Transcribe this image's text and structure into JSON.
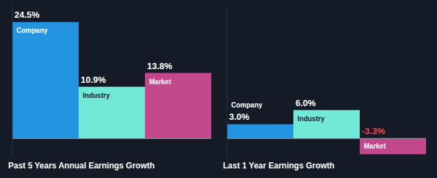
{
  "chart_data": [
    {
      "type": "bar",
      "title": "Past 5 Years Annual Earnings Growth",
      "categories": [
        "Company",
        "Industry",
        "Market"
      ],
      "values": [
        24.5,
        10.9,
        13.8
      ],
      "value_labels": [
        "24.5%",
        "10.9%",
        "13.8%"
      ],
      "colors": [
        "#2394df",
        "#72e8d6",
        "#c2488b"
      ],
      "ylim": [
        -4,
        28
      ],
      "yticks": [
        0
      ],
      "data_labels": true,
      "tick_labels": false
    },
    {
      "type": "bar",
      "title": "Last 1 Year Earnings Growth",
      "categories": [
        "Company",
        "Industry",
        "Market"
      ],
      "values": [
        3.0,
        6.0,
        -3.3
      ],
      "value_labels": [
        "3.0%",
        "6.0%",
        "-3.3%"
      ],
      "colors": [
        "#2394df",
        "#72e8d6",
        "#c2488b"
      ],
      "ylim": [
        -4,
        28
      ],
      "yticks": [
        0
      ],
      "data_labels": true,
      "tick_labels": false
    }
  ]
}
